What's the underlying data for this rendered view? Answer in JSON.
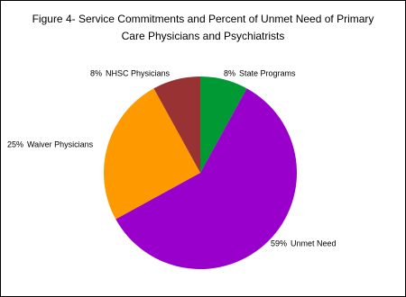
{
  "chart_data": {
    "type": "pie",
    "title": [
      "Figure 4- Service Commitments and Percent of Unmet Need of Primary",
      "Care Physicians and Psychiatrists"
    ],
    "categories": [
      "State Programs",
      "Unmet Need",
      "Waiver Physicians",
      "NHSC Physicians"
    ],
    "values": [
      8,
      59,
      25,
      8
    ],
    "value_labels": [
      "8%",
      "59%",
      "25%",
      "8%"
    ],
    "colors": [
      "#009933",
      "#9900cc",
      "#ff9900",
      "#993333"
    ]
  }
}
